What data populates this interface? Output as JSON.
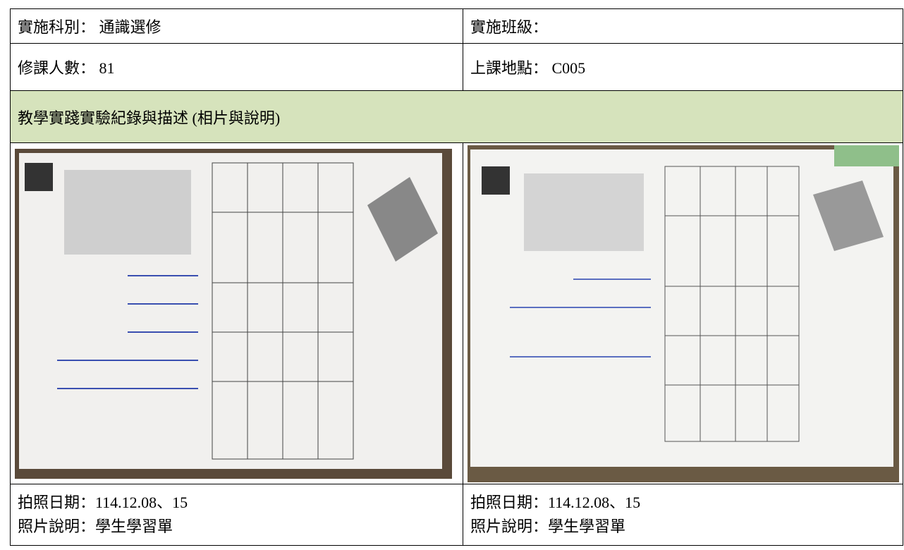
{
  "table": {
    "rows": [
      [
        "實施科別： 通識選修",
        "實施班級："
      ],
      [
        "修課人數： 81",
        "上課地點： C005"
      ]
    ],
    "section_title": "教學實踐實驗紀錄與描述 (相片與說明)",
    "photos": [
      {
        "date": "拍照日期：114.12.08、15",
        "caption": "照片說明：學生學習單"
      },
      {
        "date": "拍照日期：114.12.08、15",
        "caption": "照片說明：學生學習單"
      }
    ]
  }
}
